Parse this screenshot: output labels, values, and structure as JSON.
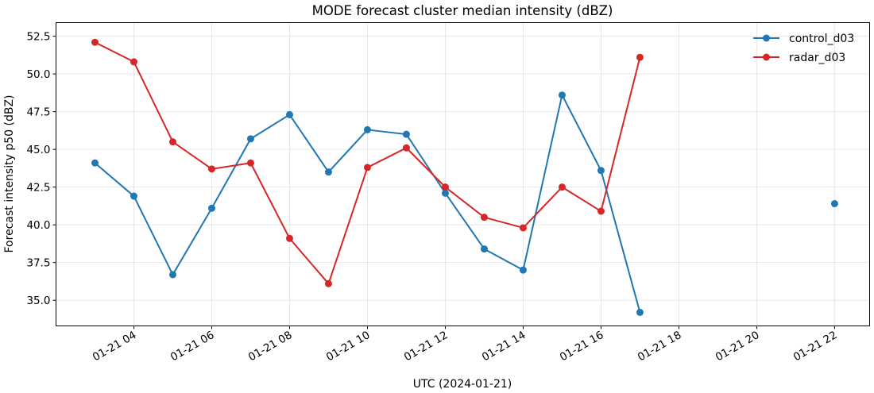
{
  "chart_data": {
    "type": "line",
    "title": "MODE forecast cluster median intensity (dBZ)",
    "xlabel": "UTC (2024-01-21)",
    "ylabel": "Forecast intensity p50 (dBZ)",
    "x_unit": "hour of 2024-01-21 (UTC)",
    "xlim": [
      2.0,
      22.9
    ],
    "ylim": [
      33.3,
      53.4
    ],
    "x_ticks": [
      4,
      6,
      8,
      10,
      12,
      14,
      16,
      18,
      20,
      22
    ],
    "x_tick_labels": [
      "01-21 04",
      "01-21 06",
      "01-21 08",
      "01-21 10",
      "01-21 12",
      "01-21 14",
      "01-21 16",
      "01-21 18",
      "01-21 20",
      "01-21 22"
    ],
    "y_ticks": [
      35.0,
      37.5,
      40.0,
      42.5,
      45.0,
      47.5,
      50.0,
      52.5
    ],
    "y_tick_labels": [
      "35.0",
      "37.5",
      "40.0",
      "42.5",
      "45.0",
      "47.5",
      "50.0",
      "52.5"
    ],
    "grid": true,
    "legend_position": "top-right",
    "series": [
      {
        "name": "control_d03",
        "color": "#1f77b4",
        "x": [
          3,
          4,
          5,
          6,
          7,
          8,
          9,
          10,
          11,
          12,
          13,
          14,
          15,
          16,
          17,
          22
        ],
        "y": [
          44.1,
          41.9,
          36.7,
          41.1,
          45.7,
          47.3,
          43.5,
          46.3,
          46.0,
          42.1,
          38.4,
          37.0,
          48.6,
          43.6,
          34.2,
          41.4
        ],
        "segments": [
          [
            0,
            14
          ],
          [
            15,
            15
          ]
        ]
      },
      {
        "name": "radar_d03",
        "color": "#d62728",
        "x": [
          3,
          4,
          5,
          6,
          7,
          8,
          9,
          10,
          11,
          12,
          13,
          14,
          15,
          16,
          17
        ],
        "y": [
          52.1,
          50.8,
          45.5,
          43.7,
          44.1,
          39.1,
          36.1,
          43.8,
          45.1,
          42.5,
          40.5,
          39.8,
          42.5,
          40.9,
          51.1
        ],
        "segments": [
          [
            0,
            14
          ]
        ]
      }
    ]
  }
}
